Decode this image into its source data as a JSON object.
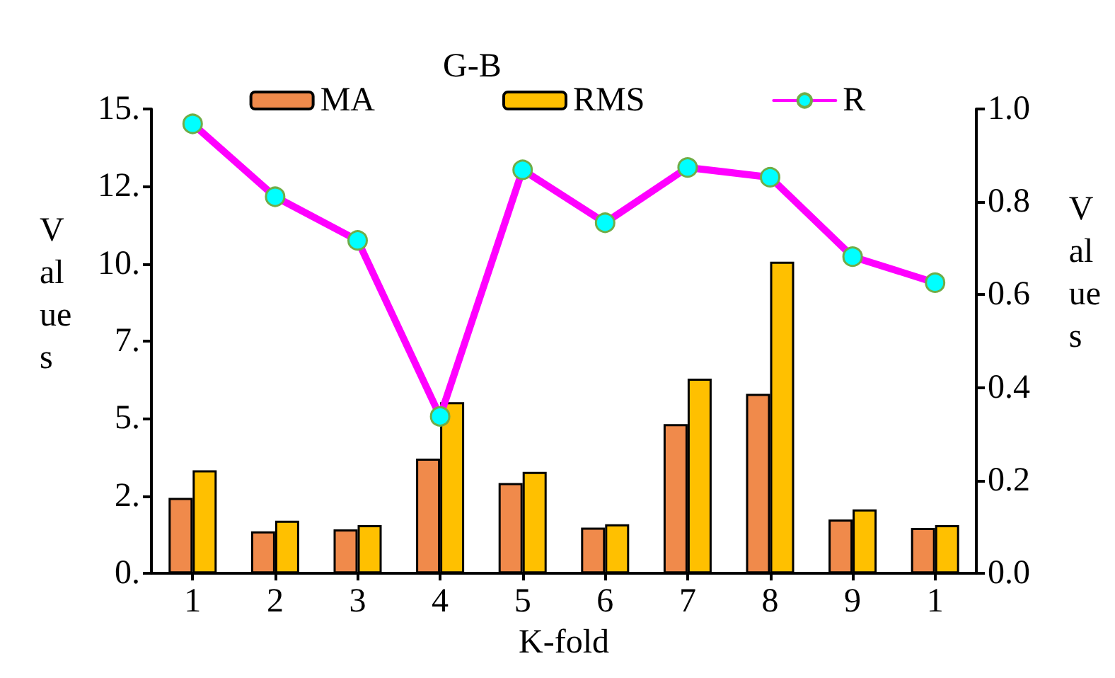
{
  "chart_data": {
    "type": "bar",
    "title": "G-B",
    "xlabel": "K-fold",
    "ylabel": "Values",
    "y2label": "Values",
    "categories": [
      "1",
      "2",
      "3",
      "4",
      "5",
      "6",
      "7",
      "8",
      "9",
      "1"
    ],
    "series": [
      {
        "name": "MA",
        "color": "#f08a4b",
        "values": [
          2.44,
          1.36,
          1.42,
          3.71,
          2.92,
          1.48,
          4.82,
          5.8,
          1.74,
          1.47
        ]
      },
      {
        "name": "RMS",
        "color": "#ffc000",
        "values": [
          3.33,
          1.7,
          1.56,
          5.53,
          3.28,
          1.59,
          6.29,
          10.07,
          2.07,
          1.56
        ]
      },
      {
        "name": "R",
        "type": "line",
        "axis": "y2",
        "color": "#ff00ff",
        "values": [
          0.968,
          0.811,
          0.717,
          0.338,
          0.869,
          0.755,
          0.874,
          0.853,
          0.682,
          0.626
        ]
      }
    ],
    "ylim": [
      0,
      15
    ],
    "yticks": [
      {
        "value": 0,
        "label": "0."
      },
      {
        "value": 2.5,
        "label": "2."
      },
      {
        "value": 5,
        "label": "5."
      },
      {
        "value": 7.5,
        "label": "7."
      },
      {
        "value": 10,
        "label": "10."
      },
      {
        "value": 12.5,
        "label": "12."
      },
      {
        "value": 15,
        "label": "15."
      }
    ],
    "y2lim": [
      0,
      1
    ],
    "y2ticks": [
      {
        "value": 0,
        "label": "0.0"
      },
      {
        "value": 0.2,
        "label": "0.2"
      },
      {
        "value": 0.4,
        "label": "0.4"
      },
      {
        "value": 0.6,
        "label": "0.6"
      },
      {
        "value": 0.8,
        "label": "0.8"
      },
      {
        "value": 1,
        "label": "1.0"
      }
    ],
    "grid": false,
    "legend": "top",
    "marker": "circle",
    "line_style": "solid"
  }
}
